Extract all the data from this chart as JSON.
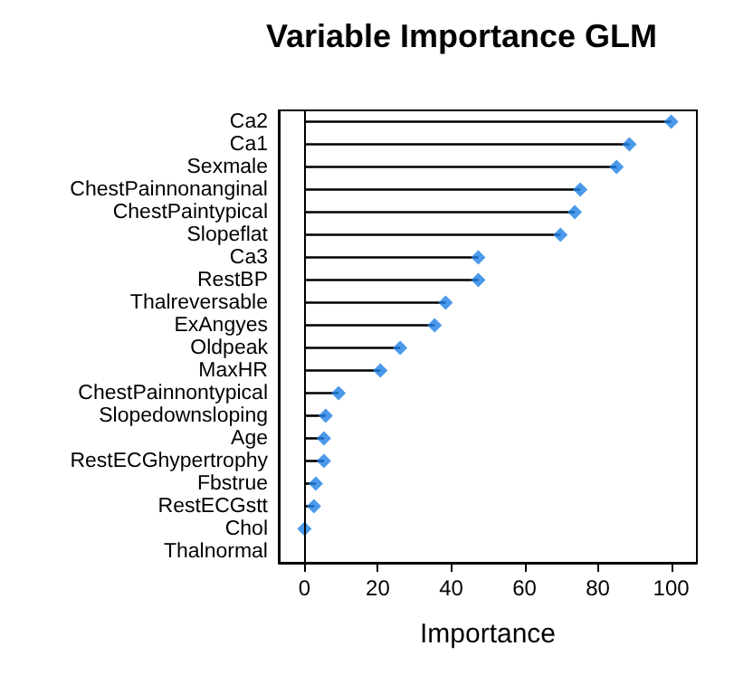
{
  "chart_data": {
    "type": "lollipop",
    "orientation": "horizontal",
    "title": "Variable Importance GLM",
    "xlabel": "Importance",
    "categories": [
      "Ca2",
      "Ca1",
      "Sexmale",
      "ChestPainnonanginal",
      "ChestPaintypical",
      "Slopeflat",
      "Ca3",
      "RestBP",
      "Thalreversable",
      "ExAngyes",
      "Oldpeak",
      "MaxHR",
      "ChestPainnontypical",
      "Slopedownsloping",
      "Age",
      "RestECGhypertrophy",
      "Fbstrue",
      "RestECGstt",
      "Chol",
      "Thalnormal"
    ],
    "values": [
      100,
      88.6,
      85.1,
      75.2,
      73.7,
      69.8,
      47.4,
      47.4,
      38.5,
      35.5,
      26.1,
      20.7,
      9.3,
      5.8,
      5.3,
      5.3,
      3.1,
      2.6,
      0,
      null
    ],
    "color": "#1e7fe6",
    "marker": "diamond",
    "ref_lines": [
      {
        "axis": "x",
        "value": 0,
        "color": "#000000",
        "line_style": "solid"
      }
    ],
    "xlim": [
      -7,
      107
    ],
    "xticks": [
      0,
      20,
      40,
      60,
      80,
      100
    ]
  }
}
